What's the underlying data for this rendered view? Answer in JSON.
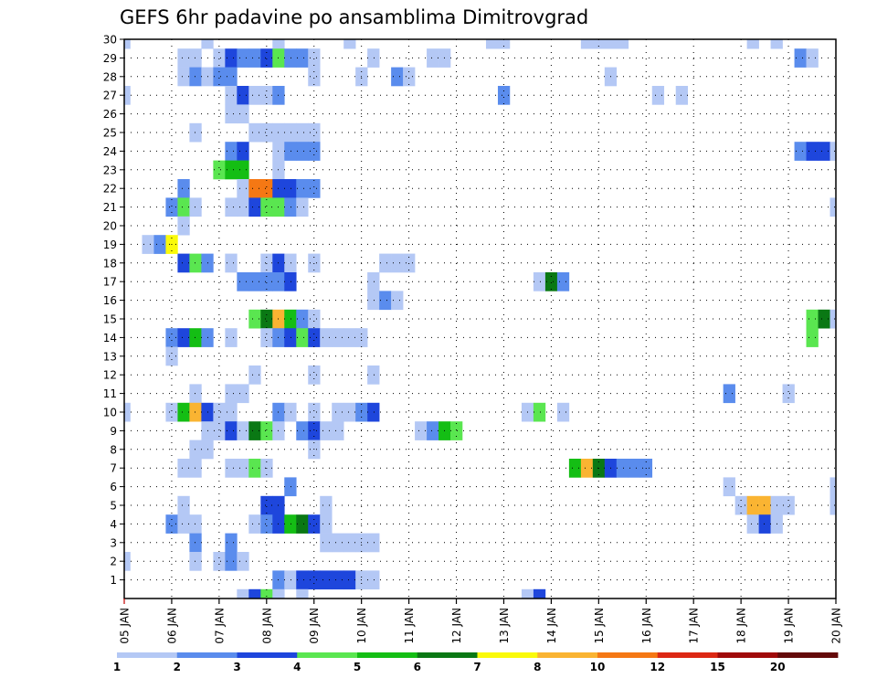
{
  "chart_data": {
    "type": "heatmap",
    "title": "GEFS 6hr padavine po ansamblima Dimitrovgrad",
    "xlabel": "",
    "ylabel": "",
    "x_tick_labels": [
      "05 JAN",
      "06 JAN",
      "07 JAN",
      "08 JAN",
      "09 JAN",
      "10 JAN",
      "11 JAN",
      "12 JAN",
      "13 JAN",
      "14 JAN",
      "15 JAN",
      "16 JAN",
      "17 JAN",
      "18 JAN",
      "19 JAN",
      "20 JAN"
    ],
    "y_tick_labels": [
      "1",
      "2",
      "3",
      "4",
      "5",
      "6",
      "7",
      "8",
      "9",
      "10",
      "11",
      "12",
      "13",
      "14",
      "15",
      "16",
      "17",
      "18",
      "19",
      "20",
      "21",
      "22",
      "23",
      "24",
      "25",
      "26",
      "27",
      "28",
      "29",
      "30"
    ],
    "x_range": [
      "05 JAN 00Z",
      "20 JAN 00Z"
    ],
    "time_step_hours": 6,
    "y_range": [
      0,
      30
    ],
    "grid": true,
    "colorbar_position": "bottom",
    "colorbar_labels": [
      "1",
      "2",
      "3",
      "4",
      "5",
      "6",
      "7",
      "8",
      "10",
      "12",
      "15",
      "20"
    ],
    "colorbar_colors": [
      "#b4c8f5",
      "#5a8ced",
      "#1e46dc",
      "#5ae650",
      "#14be14",
      "#0a7814",
      "#fafa0a",
      "#fab432",
      "#f57814",
      "#dc2814",
      "#a00a0a",
      "#640a0a"
    ],
    "cells": [
      [
        30,
        -1,
        1
      ],
      [
        30,
        6,
        1
      ],
      [
        30,
        12,
        1
      ],
      [
        30,
        18,
        1
      ],
      [
        30,
        30,
        1
      ],
      [
        30,
        31,
        1
      ],
      [
        30,
        38,
        1
      ],
      [
        30,
        39,
        1
      ],
      [
        30,
        40,
        1
      ],
      [
        30,
        41,
        1
      ],
      [
        30,
        52,
        1
      ],
      [
        30,
        54,
        1
      ],
      [
        29,
        4,
        1
      ],
      [
        29,
        5,
        1
      ],
      [
        29,
        7,
        1
      ],
      [
        29,
        8,
        3
      ],
      [
        29,
        9,
        2
      ],
      [
        29,
        10,
        2
      ],
      [
        29,
        11,
        3
      ],
      [
        29,
        12,
        4
      ],
      [
        29,
        13,
        2
      ],
      [
        29,
        14,
        2
      ],
      [
        29,
        15,
        1
      ],
      [
        29,
        20,
        1
      ],
      [
        29,
        25,
        1
      ],
      [
        29,
        26,
        1
      ],
      [
        29,
        56,
        2
      ],
      [
        29,
        57,
        1
      ],
      [
        28,
        4,
        1
      ],
      [
        28,
        5,
        2
      ],
      [
        28,
        6,
        1
      ],
      [
        28,
        7,
        2
      ],
      [
        28,
        8,
        2
      ],
      [
        28,
        15,
        1
      ],
      [
        28,
        19,
        1
      ],
      [
        28,
        22,
        2
      ],
      [
        28,
        23,
        1
      ],
      [
        28,
        40,
        1
      ],
      [
        27,
        -1,
        1
      ],
      [
        27,
        8,
        1
      ],
      [
        27,
        9,
        3
      ],
      [
        27,
        10,
        1
      ],
      [
        27,
        11,
        1
      ],
      [
        27,
        12,
        2
      ],
      [
        27,
        31,
        2
      ],
      [
        27,
        44,
        1
      ],
      [
        27,
        46,
        1
      ],
      [
        26,
        8,
        1
      ],
      [
        26,
        9,
        1
      ],
      [
        25,
        5,
        1
      ],
      [
        25,
        10,
        1
      ],
      [
        25,
        11,
        1
      ],
      [
        25,
        12,
        1
      ],
      [
        25,
        13,
        1
      ],
      [
        25,
        14,
        1
      ],
      [
        25,
        15,
        1
      ],
      [
        25,
        60,
        1
      ],
      [
        24,
        8,
        2
      ],
      [
        24,
        9,
        3
      ],
      [
        24,
        12,
        1
      ],
      [
        24,
        13,
        2
      ],
      [
        24,
        14,
        2
      ],
      [
        24,
        15,
        2
      ],
      [
        24,
        56,
        2
      ],
      [
        24,
        57,
        3
      ],
      [
        24,
        58,
        3
      ],
      [
        24,
        59,
        1
      ],
      [
        23,
        7,
        4
      ],
      [
        23,
        8,
        5
      ],
      [
        23,
        9,
        5
      ],
      [
        23,
        12,
        1
      ],
      [
        22,
        4,
        2
      ],
      [
        22,
        9,
        1
      ],
      [
        22,
        10,
        9
      ],
      [
        22,
        11,
        9
      ],
      [
        22,
        12,
        3
      ],
      [
        22,
        13,
        3
      ],
      [
        22,
        14,
        2
      ],
      [
        22,
        15,
        2
      ],
      [
        21,
        3,
        2
      ],
      [
        21,
        4,
        4
      ],
      [
        21,
        5,
        1
      ],
      [
        21,
        8,
        1
      ],
      [
        21,
        9,
        1
      ],
      [
        21,
        10,
        3
      ],
      [
        21,
        11,
        4
      ],
      [
        21,
        12,
        4
      ],
      [
        21,
        13,
        2
      ],
      [
        21,
        14,
        1
      ],
      [
        21,
        59,
        1
      ],
      [
        21,
        60,
        2
      ],
      [
        20,
        4,
        1
      ],
      [
        19,
        1,
        1
      ],
      [
        19,
        2,
        2
      ],
      [
        19,
        3,
        7
      ],
      [
        18,
        4,
        3
      ],
      [
        18,
        5,
        4
      ],
      [
        18,
        6,
        2
      ],
      [
        18,
        8,
        1
      ],
      [
        18,
        11,
        1
      ],
      [
        18,
        12,
        3
      ],
      [
        18,
        13,
        1
      ],
      [
        18,
        15,
        1
      ],
      [
        18,
        21,
        1
      ],
      [
        18,
        22,
        1
      ],
      [
        18,
        23,
        1
      ],
      [
        17,
        9,
        2
      ],
      [
        17,
        10,
        2
      ],
      [
        17,
        11,
        2
      ],
      [
        17,
        12,
        2
      ],
      [
        17,
        13,
        3
      ],
      [
        17,
        20,
        1
      ],
      [
        17,
        34,
        1
      ],
      [
        17,
        35,
        6
      ],
      [
        17,
        36,
        2
      ],
      [
        16,
        20,
        1
      ],
      [
        16,
        21,
        2
      ],
      [
        16,
        22,
        1
      ],
      [
        15,
        10,
        4
      ],
      [
        15,
        11,
        6
      ],
      [
        15,
        12,
        8
      ],
      [
        15,
        13,
        5
      ],
      [
        15,
        14,
        2
      ],
      [
        15,
        15,
        1
      ],
      [
        15,
        57,
        4
      ],
      [
        15,
        58,
        6
      ],
      [
        15,
        59,
        1
      ],
      [
        14,
        3,
        2
      ],
      [
        14,
        4,
        3
      ],
      [
        14,
        5,
        5
      ],
      [
        14,
        6,
        2
      ],
      [
        14,
        8,
        1
      ],
      [
        14,
        11,
        1
      ],
      [
        14,
        12,
        2
      ],
      [
        14,
        13,
        3
      ],
      [
        14,
        14,
        4
      ],
      [
        14,
        15,
        3
      ],
      [
        14,
        16,
        1
      ],
      [
        14,
        17,
        1
      ],
      [
        14,
        18,
        1
      ],
      [
        14,
        19,
        1
      ],
      [
        14,
        57,
        4
      ],
      [
        13,
        3,
        1
      ],
      [
        12,
        10,
        1
      ],
      [
        12,
        15,
        1
      ],
      [
        12,
        20,
        1
      ],
      [
        11,
        5,
        1
      ],
      [
        11,
        8,
        1
      ],
      [
        11,
        9,
        1
      ],
      [
        11,
        50,
        2
      ],
      [
        11,
        55,
        1
      ],
      [
        10,
        -1,
        1
      ],
      [
        10,
        3,
        1
      ],
      [
        10,
        4,
        5
      ],
      [
        10,
        5,
        8
      ],
      [
        10,
        6,
        3
      ],
      [
        10,
        7,
        1
      ],
      [
        10,
        8,
        1
      ],
      [
        10,
        12,
        2
      ],
      [
        10,
        13,
        1
      ],
      [
        10,
        15,
        1
      ],
      [
        10,
        17,
        1
      ],
      [
        10,
        18,
        1
      ],
      [
        10,
        19,
        2
      ],
      [
        10,
        20,
        3
      ],
      [
        10,
        33,
        1
      ],
      [
        10,
        34,
        4
      ],
      [
        10,
        36,
        1
      ],
      [
        9,
        6,
        1
      ],
      [
        9,
        7,
        1
      ],
      [
        9,
        8,
        3
      ],
      [
        9,
        9,
        1
      ],
      [
        9,
        10,
        6
      ],
      [
        9,
        11,
        4
      ],
      [
        9,
        12,
        1
      ],
      [
        9,
        14,
        2
      ],
      [
        9,
        15,
        3
      ],
      [
        9,
        16,
        1
      ],
      [
        9,
        17,
        1
      ],
      [
        9,
        24,
        1
      ],
      [
        9,
        25,
        2
      ],
      [
        9,
        26,
        5
      ],
      [
        9,
        27,
        4
      ],
      [
        8,
        5,
        1
      ],
      [
        8,
        6,
        1
      ],
      [
        8,
        15,
        1
      ],
      [
        7,
        4,
        1
      ],
      [
        7,
        5,
        1
      ],
      [
        7,
        8,
        1
      ],
      [
        7,
        9,
        1
      ],
      [
        7,
        10,
        4
      ],
      [
        7,
        11,
        1
      ],
      [
        7,
        37,
        5
      ],
      [
        7,
        38,
        8
      ],
      [
        7,
        39,
        6
      ],
      [
        7,
        40,
        3
      ],
      [
        7,
        41,
        2
      ],
      [
        7,
        42,
        2
      ],
      [
        7,
        43,
        2
      ],
      [
        6,
        13,
        2
      ],
      [
        6,
        50,
        1
      ],
      [
        6,
        59,
        1
      ],
      [
        5,
        4,
        1
      ],
      [
        5,
        11,
        3
      ],
      [
        5,
        12,
        3
      ],
      [
        5,
        16,
        1
      ],
      [
        5,
        51,
        1
      ],
      [
        5,
        52,
        8
      ],
      [
        5,
        53,
        8
      ],
      [
        5,
        54,
        1
      ],
      [
        5,
        55,
        1
      ],
      [
        5,
        59,
        1
      ],
      [
        4,
        3,
        2
      ],
      [
        4,
        4,
        1
      ],
      [
        4,
        5,
        1
      ],
      [
        4,
        10,
        1
      ],
      [
        4,
        11,
        2
      ],
      [
        4,
        12,
        3
      ],
      [
        4,
        13,
        5
      ],
      [
        4,
        14,
        6
      ],
      [
        4,
        15,
        3
      ],
      [
        4,
        16,
        1
      ],
      [
        4,
        52,
        1
      ],
      [
        4,
        53,
        3
      ],
      [
        4,
        54,
        1
      ],
      [
        3,
        5,
        2
      ],
      [
        3,
        8,
        2
      ],
      [
        3,
        16,
        1
      ],
      [
        3,
        17,
        1
      ],
      [
        3,
        18,
        1
      ],
      [
        3,
        19,
        1
      ],
      [
        3,
        20,
        1
      ],
      [
        2,
        -1,
        1
      ],
      [
        2,
        5,
        1
      ],
      [
        2,
        7,
        1
      ],
      [
        2,
        8,
        2
      ],
      [
        2,
        9,
        1
      ],
      [
        1,
        12,
        2
      ],
      [
        1,
        13,
        1
      ],
      [
        1,
        14,
        3
      ],
      [
        1,
        15,
        3
      ],
      [
        1,
        16,
        3
      ],
      [
        1,
        17,
        3
      ],
      [
        1,
        18,
        3
      ],
      [
        1,
        19,
        1
      ],
      [
        1,
        20,
        1
      ],
      [
        0,
        9,
        1
      ],
      [
        0,
        10,
        3
      ],
      [
        0,
        11,
        4
      ],
      [
        0,
        12,
        1
      ],
      [
        0,
        14,
        1
      ],
      [
        0,
        33,
        1
      ],
      [
        0,
        34,
        3
      ]
    ]
  }
}
